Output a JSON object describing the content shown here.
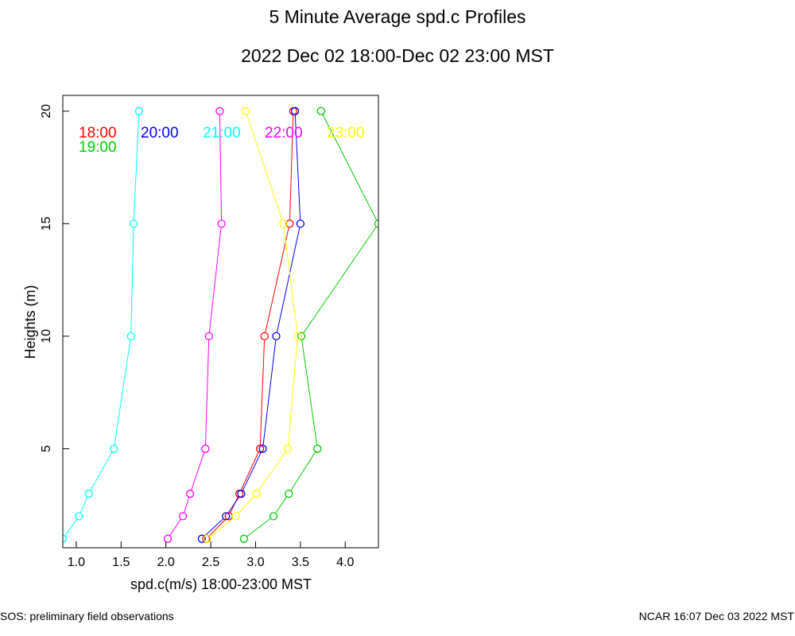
{
  "footer": {
    "left": "SOS: preliminary field observations",
    "right": "NCAR 16:07 Dec 03 2022 MST"
  },
  "chart_data": {
    "type": "line",
    "title": "5 Minute Average spd.c Profiles",
    "subtitle": "2022 Dec 02 18:00-Dec 02 23:00 MST",
    "xlabel": "spd.c(m/s) 18:00-23:00 MST",
    "ylabel": "Heights (m)",
    "xlim": [
      0.85,
      4.37
    ],
    "ylim": [
      0.6,
      20.7
    ],
    "xticks": [
      1.0,
      1.5,
      2.0,
      2.5,
      3.0,
      3.5,
      4.0
    ],
    "xtick_labels": [
      "1.0",
      "1.5",
      "2.0",
      "2.5",
      "3.0",
      "3.5",
      "4.0"
    ],
    "yticks": [
      5,
      10,
      15,
      20
    ],
    "ytick_labels": [
      "5",
      "10",
      "15",
      "20"
    ],
    "heights": [
      1,
      2,
      3,
      5,
      10,
      15,
      20
    ],
    "series": [
      {
        "name": "18:00",
        "color": "#ff0000",
        "values": [
          2.45,
          2.7,
          2.82,
          3.05,
          3.1,
          3.38,
          3.42
        ]
      },
      {
        "name": "19:00",
        "color": "#00cc00",
        "values": [
          2.87,
          3.2,
          3.37,
          3.69,
          3.51,
          4.37,
          3.73
        ]
      },
      {
        "name": "20:00",
        "color": "#0000ff",
        "values": [
          2.4,
          2.67,
          2.84,
          3.08,
          3.23,
          3.5,
          3.44
        ]
      },
      {
        "name": "21:00",
        "color": "#00ffff",
        "values": [
          0.85,
          1.03,
          1.14,
          1.42,
          1.61,
          1.64,
          1.7
        ]
      },
      {
        "name": "22:00",
        "color": "#ff00ff",
        "values": [
          2.02,
          2.19,
          2.27,
          2.44,
          2.48,
          2.62,
          2.6
        ]
      },
      {
        "name": "23:00",
        "color": "#ffff00",
        "values": [
          2.46,
          2.78,
          3.01,
          3.36,
          3.47,
          3.31,
          2.89
        ]
      }
    ]
  }
}
